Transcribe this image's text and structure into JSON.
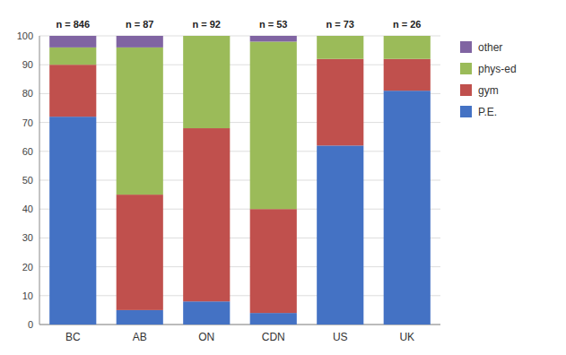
{
  "chart_data": {
    "type": "bar",
    "stacked": true,
    "categories": [
      "BC",
      "AB",
      "ON",
      "CDN",
      "US",
      "UK"
    ],
    "series": [
      {
        "name": "P.E.",
        "color": "#4472C4",
        "values": [
          72,
          5,
          8,
          4,
          62,
          81
        ]
      },
      {
        "name": "gym",
        "color": "#C0504D",
        "values": [
          18,
          40,
          60,
          36,
          30,
          11
        ]
      },
      {
        "name": "phys-ed",
        "color": "#9BBB59",
        "values": [
          6,
          51,
          32,
          58,
          8,
          8
        ]
      },
      {
        "name": "other",
        "color": "#8064A2",
        "values": [
          4,
          4,
          0,
          2,
          0,
          0
        ]
      }
    ],
    "annotations": [
      "n = 846",
      "n = 87",
      "n = 92",
      "n = 53",
      "n = 73",
      "n = 26"
    ],
    "ylim": [
      0,
      100
    ],
    "yticks": [
      0,
      10,
      20,
      30,
      40,
      50,
      60,
      70,
      80,
      90,
      100
    ],
    "grid": true,
    "legend": "right"
  }
}
